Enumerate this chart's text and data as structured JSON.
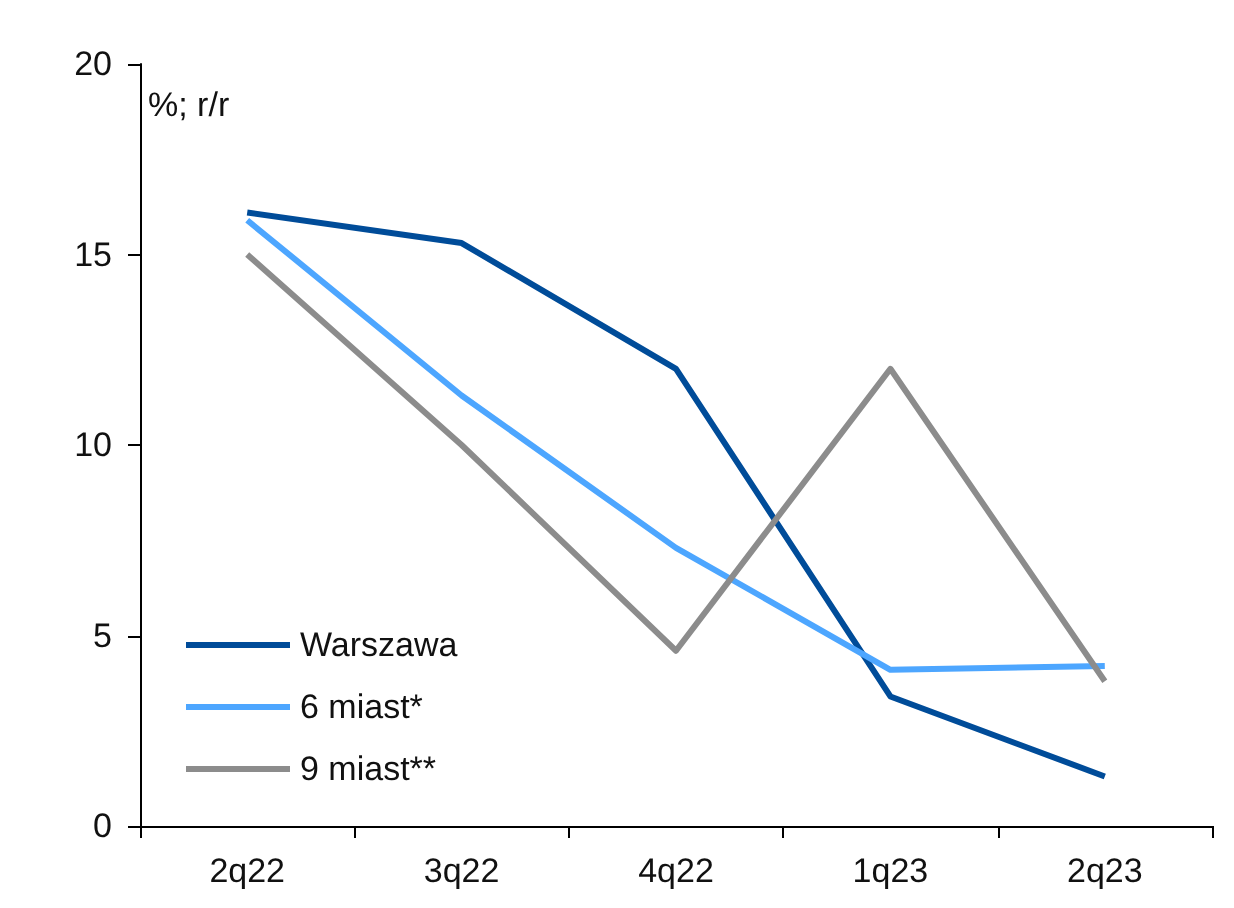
{
  "chart_data": {
    "type": "line",
    "ylabel": "%; r/r",
    "categories": [
      "2q22",
      "3q22",
      "4q22",
      "1q23",
      "2q23"
    ],
    "series": [
      {
        "name": "Warszawa",
        "color": "#004c99",
        "values": [
          16.1,
          15.3,
          12.0,
          3.4,
          1.3
        ]
      },
      {
        "name": "6 miast*",
        "color": "#4da6ff",
        "values": [
          15.9,
          11.3,
          7.3,
          4.1,
          4.2
        ]
      },
      {
        "name": "9 miast**",
        "color": "#8c8c8c",
        "values": [
          15.0,
          10.0,
          4.6,
          12.0,
          3.8
        ]
      }
    ],
    "ylim": [
      0,
      20
    ],
    "yticks": [
      0,
      5,
      10,
      15,
      20
    ],
    "grid": false,
    "legend": "bottom left",
    "marker": "none",
    "line_style": "solid"
  }
}
